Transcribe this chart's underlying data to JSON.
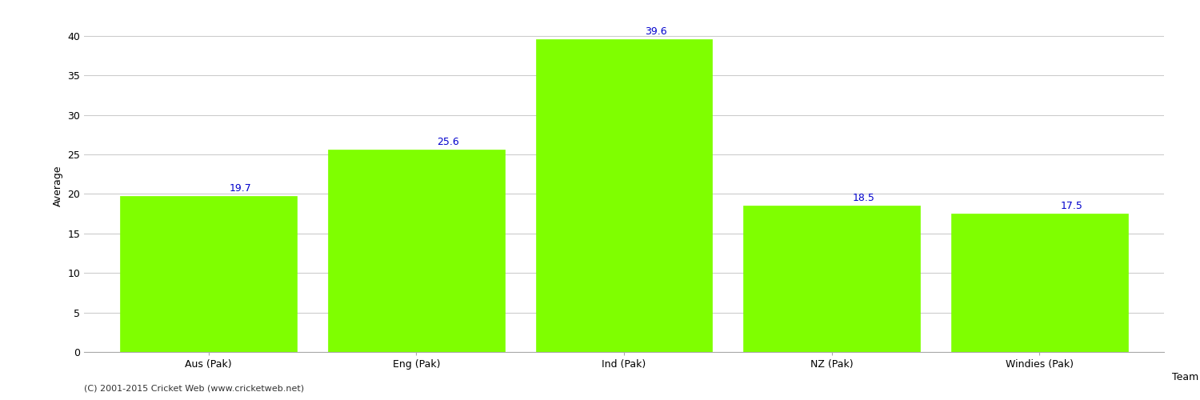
{
  "categories": [
    "Aus (Pak)",
    "Eng (Pak)",
    "Ind (Pak)",
    "NZ (Pak)",
    "Windies (Pak)"
  ],
  "values": [
    19.7,
    25.6,
    39.6,
    18.5,
    17.5
  ],
  "bar_color": "#7FFF00",
  "bar_edge_color": "#7FFF00",
  "label_color": "#0000CC",
  "xlabel": "Team",
  "ylabel": "Average",
  "ylim": [
    0,
    42
  ],
  "yticks": [
    0,
    5,
    10,
    15,
    20,
    25,
    30,
    35,
    40
  ],
  "background_color": "#ffffff",
  "grid_color": "#cccccc",
  "label_fontsize": 9,
  "axis_fontsize": 9,
  "footnote": "(C) 2001-2015 Cricket Web (www.cricketweb.net)"
}
